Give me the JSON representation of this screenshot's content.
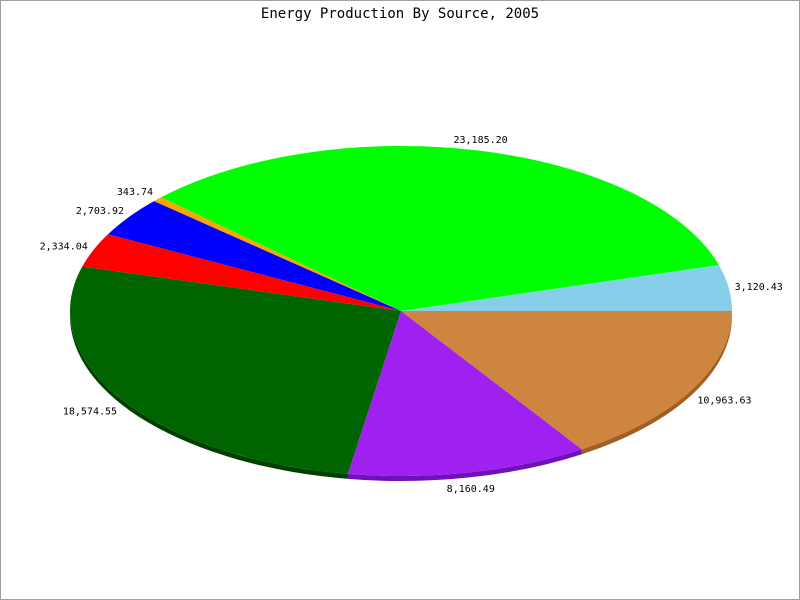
{
  "chart_data": {
    "type": "pie",
    "title": "Energy Production By Source, 2005",
    "slices": [
      {
        "value": 3120.43,
        "label": "3,120.43",
        "color": "#87ceeb",
        "side": "#6ea8c4"
      },
      {
        "value": 23185.2,
        "label": "23,185.20",
        "color": "#00ff00",
        "side": "#00c800"
      },
      {
        "value": 343.74,
        "label": "343.74",
        "color": "#ffa500",
        "side": "#c88000"
      },
      {
        "value": 2703.92,
        "label": "2,703.92",
        "color": "#0000ff",
        "side": "#0000c0"
      },
      {
        "value": 2334.04,
        "label": "2,334.04",
        "color": "#ff0000",
        "side": "#c00000"
      },
      {
        "value": 18574.55,
        "label": "18,574.55",
        "color": "#006400",
        "side": "#004000"
      },
      {
        "value": 8160.49,
        "label": "8,160.49",
        "color": "#a020f0",
        "side": "#7010b8"
      },
      {
        "value": 10963.63,
        "label": "10,963.63",
        "color": "#cd853f",
        "side": "#a05f20"
      }
    ]
  }
}
